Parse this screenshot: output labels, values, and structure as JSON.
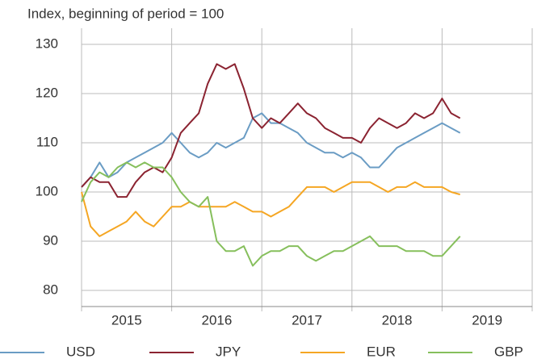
{
  "chart_data": {
    "type": "line",
    "y_label": "Index, beginning of period = 100",
    "x": [
      2015.0,
      2015.1,
      2015.2,
      2015.3,
      2015.4,
      2015.5,
      2015.6,
      2015.7,
      2015.8,
      2015.9,
      2016.0,
      2016.1,
      2016.2,
      2016.3,
      2016.4,
      2016.5,
      2016.6,
      2016.7,
      2016.8,
      2016.9,
      2017.0,
      2017.1,
      2017.2,
      2017.3,
      2017.4,
      2017.5,
      2017.6,
      2017.7,
      2017.8,
      2017.9,
      2018.0,
      2018.1,
      2018.2,
      2018.3,
      2018.4,
      2018.5,
      2018.6,
      2018.7,
      2018.8,
      2018.9,
      2019.0,
      2019.1,
      2019.2
    ],
    "series": [
      {
        "name": "USD",
        "color": "#6a9cc4",
        "values": [
          101,
          103,
          106,
          103,
          104,
          106,
          107,
          108,
          109,
          110,
          112,
          110,
          108,
          107,
          108,
          110,
          109,
          110,
          111,
          115,
          116,
          114,
          114,
          113,
          112,
          110,
          109,
          108,
          108,
          107,
          108,
          107,
          105,
          105,
          107,
          109,
          110,
          111,
          112,
          113,
          114,
          113,
          112
        ]
      },
      {
        "name": "JPY",
        "color": "#8b2331",
        "values": [
          101,
          103,
          102,
          102,
          99,
          99,
          102,
          104,
          105,
          104,
          107,
          112,
          114,
          116,
          122,
          126,
          125,
          126,
          121,
          115,
          113,
          115,
          114,
          116,
          118,
          116,
          115,
          113,
          112,
          111,
          111,
          110,
          113,
          115,
          114,
          113,
          114,
          116,
          115,
          116,
          119,
          116,
          115
        ]
      },
      {
        "name": "EUR",
        "color": "#f5a623",
        "values": [
          100,
          93,
          91,
          92,
          93,
          94,
          96,
          94,
          93,
          95,
          97,
          97,
          98,
          97,
          97,
          97,
          97,
          98,
          97,
          96,
          96,
          95,
          96,
          97,
          99,
          101,
          101,
          101,
          100,
          101,
          102,
          102,
          102,
          101,
          100,
          101,
          101,
          102,
          101,
          101,
          101,
          100,
          99.5
        ]
      },
      {
        "name": "GBP",
        "color": "#86bf5c",
        "values": [
          98,
          102,
          104,
          103,
          105,
          106,
          105,
          106,
          105,
          105,
          103,
          100,
          98,
          97,
          99,
          90,
          88,
          88,
          89,
          85,
          87,
          88,
          88,
          89,
          89,
          87,
          86,
          87,
          88,
          88,
          89,
          90,
          91,
          89,
          89,
          89,
          88,
          88,
          88,
          87,
          87,
          89,
          91
        ]
      }
    ],
    "xlim": [
      2015,
      2020
    ],
    "xgrid": [
      2015,
      2016,
      2017,
      2018,
      2019,
      2020
    ],
    "xticks": [
      {
        "value": 2015.5,
        "label": "2015"
      },
      {
        "value": 2016.5,
        "label": "2016"
      },
      {
        "value": 2017.5,
        "label": "2017"
      },
      {
        "value": 2018.5,
        "label": "2018"
      },
      {
        "value": 2019.5,
        "label": "2019"
      }
    ],
    "ylim": [
      77,
      132
    ],
    "yticks": [
      80,
      90,
      100,
      110,
      120,
      130
    ],
    "grid": true
  }
}
